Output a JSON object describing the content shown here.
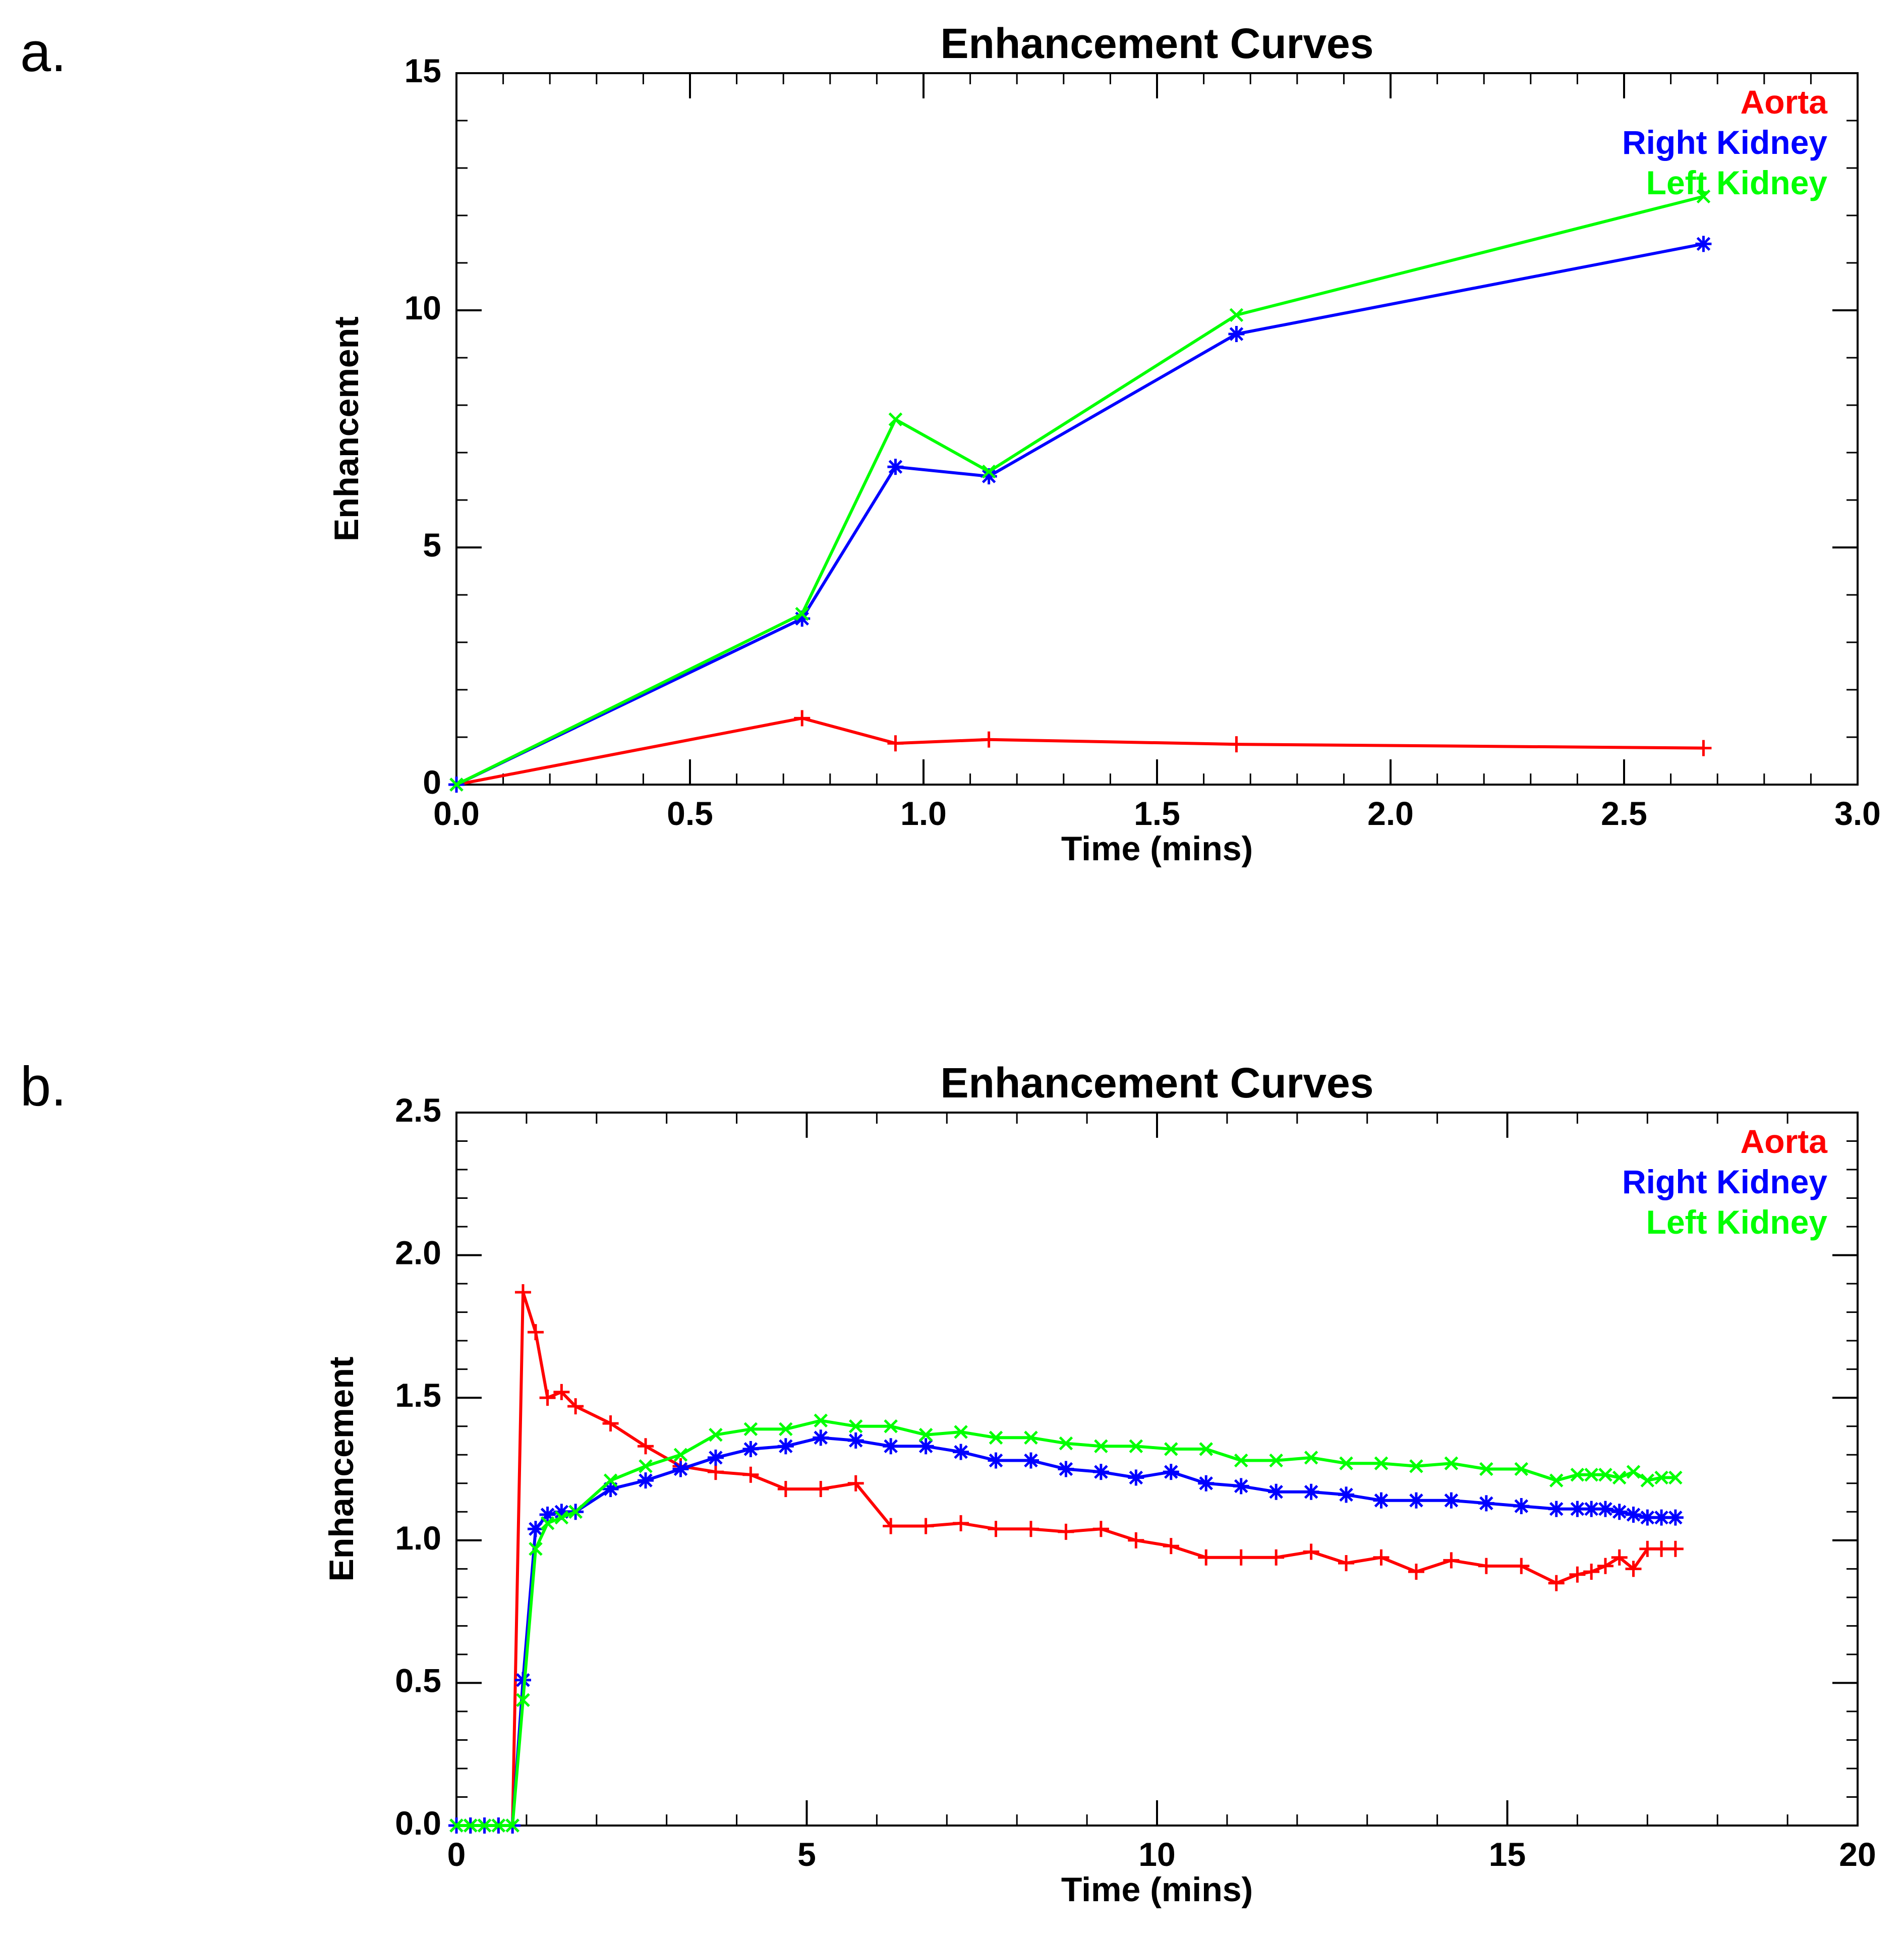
{
  "panel_labels": {
    "a": "a.",
    "b": "b."
  },
  "chart_data": [
    {
      "type": "line",
      "panel": "a.",
      "title": "Enhancement Curves",
      "xlabel": "Time (mins)",
      "ylabel": "Enhancement",
      "xlim": [
        0,
        3
      ],
      "ylim": [
        0,
        15
      ],
      "xticks": [
        0,
        0.5,
        1,
        1.5,
        2,
        2.5,
        3
      ],
      "xtick_labels": [
        "0.0",
        "0.5",
        "1.0",
        "1.5",
        "2.0",
        "2.5",
        "3.0"
      ],
      "yticks": [
        0,
        5,
        10,
        15
      ],
      "ytick_labels": [
        "0",
        "5",
        "10",
        "15"
      ],
      "x_minor_step": 0.1,
      "y_minor_step": 1,
      "legend_position": "top-right",
      "series": [
        {
          "name": "Aorta",
          "color": "#ff0000",
          "marker": "plus",
          "x": [
            0.0,
            0.74,
            0.94,
            1.14,
            1.67,
            2.67
          ],
          "y": [
            0.0,
            1.4,
            0.87,
            0.95,
            0.85,
            0.77
          ]
        },
        {
          "name": "Right Kidney",
          "color": "#0000ff",
          "marker": "asterisk",
          "x": [
            0.0,
            0.74,
            0.94,
            1.14,
            1.67,
            2.67
          ],
          "y": [
            0.0,
            3.5,
            6.7,
            6.5,
            9.5,
            11.4
          ]
        },
        {
          "name": "Left Kidney",
          "color": "#00ff00",
          "marker": "cross",
          "x": [
            0.0,
            0.74,
            0.94,
            1.14,
            1.67,
            2.67
          ],
          "y": [
            0.0,
            3.6,
            7.7,
            6.6,
            9.9,
            12.4
          ]
        }
      ]
    },
    {
      "type": "line",
      "panel": "b.",
      "title": "Enhancement Curves",
      "xlabel": "Time (mins)",
      "ylabel": "Enhancement",
      "xlim": [
        0,
        20
      ],
      "ylim": [
        0,
        2.5
      ],
      "xticks": [
        0,
        5,
        10,
        15,
        20
      ],
      "xtick_labels": [
        "0",
        "5",
        "10",
        "15",
        "20"
      ],
      "yticks": [
        0,
        0.5,
        1,
        1.5,
        2,
        2.5
      ],
      "ytick_labels": [
        "0.0",
        "0.5",
        "1.0",
        "1.5",
        "2.0",
        "2.5"
      ],
      "x_minor_step": 1,
      "y_minor_step": 0.1,
      "legend_position": "top-right",
      "series": [
        {
          "name": "Aorta",
          "color": "#ff0000",
          "marker": "plus",
          "x": [
            0.0,
            0.2,
            0.4,
            0.6,
            0.8,
            0.95,
            1.13,
            1.3,
            1.5,
            1.7,
            2.2,
            2.7,
            3.2,
            3.7,
            4.2,
            4.7,
            5.2,
            5.7,
            6.2,
            6.7,
            7.2,
            7.7,
            8.2,
            8.7,
            9.2,
            9.7,
            10.2,
            10.7,
            11.2,
            11.7,
            12.2,
            12.7,
            13.2,
            13.7,
            14.2,
            14.7,
            15.2,
            15.7,
            16.0,
            16.2,
            16.4,
            16.6,
            16.8,
            17.0,
            17.2,
            17.4
          ],
          "y": [
            0.0,
            0.0,
            0.0,
            0.0,
            0.0,
            1.87,
            1.73,
            1.5,
            1.52,
            1.47,
            1.41,
            1.33,
            1.26,
            1.24,
            1.23,
            1.18,
            1.18,
            1.2,
            1.05,
            1.05,
            1.06,
            1.04,
            1.04,
            1.03,
            1.04,
            1.0,
            0.98,
            0.94,
            0.94,
            0.94,
            0.96,
            0.92,
            0.94,
            0.89,
            0.93,
            0.91,
            0.91,
            0.85,
            0.88,
            0.89,
            0.91,
            0.94,
            0.9,
            0.97,
            0.97,
            0.97
          ]
        },
        {
          "name": "Right Kidney",
          "color": "#0000ff",
          "marker": "asterisk",
          "x": [
            0.0,
            0.2,
            0.4,
            0.6,
            0.8,
            0.95,
            1.13,
            1.3,
            1.5,
            1.7,
            2.2,
            2.7,
            3.2,
            3.7,
            4.2,
            4.7,
            5.2,
            5.7,
            6.2,
            6.7,
            7.2,
            7.7,
            8.2,
            8.7,
            9.2,
            9.7,
            10.2,
            10.7,
            11.2,
            11.7,
            12.2,
            12.7,
            13.2,
            13.7,
            14.2,
            14.7,
            15.2,
            15.7,
            16.0,
            16.2,
            16.4,
            16.6,
            16.8,
            17.0,
            17.2,
            17.4
          ],
          "y": [
            0.0,
            0.0,
            0.0,
            0.0,
            0.0,
            0.51,
            1.04,
            1.09,
            1.1,
            1.1,
            1.18,
            1.21,
            1.25,
            1.29,
            1.32,
            1.33,
            1.36,
            1.35,
            1.33,
            1.33,
            1.31,
            1.28,
            1.28,
            1.25,
            1.24,
            1.22,
            1.24,
            1.2,
            1.19,
            1.17,
            1.17,
            1.16,
            1.14,
            1.14,
            1.14,
            1.13,
            1.12,
            1.11,
            1.11,
            1.11,
            1.11,
            1.1,
            1.09,
            1.08,
            1.08,
            1.08
          ]
        },
        {
          "name": "Left Kidney",
          "color": "#00ff00",
          "marker": "cross",
          "x": [
            0.0,
            0.2,
            0.4,
            0.6,
            0.8,
            0.95,
            1.13,
            1.3,
            1.5,
            1.7,
            2.2,
            2.7,
            3.2,
            3.7,
            4.2,
            4.7,
            5.2,
            5.7,
            6.2,
            6.7,
            7.2,
            7.7,
            8.2,
            8.7,
            9.2,
            9.7,
            10.2,
            10.7,
            11.2,
            11.7,
            12.2,
            12.7,
            13.2,
            13.7,
            14.2,
            14.7,
            15.2,
            15.7,
            16.0,
            16.2,
            16.4,
            16.6,
            16.8,
            17.0,
            17.2,
            17.4
          ],
          "y": [
            0.0,
            0.0,
            0.0,
            0.0,
            0.0,
            0.44,
            0.97,
            1.06,
            1.08,
            1.1,
            1.21,
            1.26,
            1.3,
            1.37,
            1.39,
            1.39,
            1.42,
            1.4,
            1.4,
            1.37,
            1.38,
            1.36,
            1.36,
            1.34,
            1.33,
            1.33,
            1.32,
            1.32,
            1.28,
            1.28,
            1.29,
            1.27,
            1.27,
            1.26,
            1.27,
            1.25,
            1.25,
            1.21,
            1.23,
            1.23,
            1.23,
            1.22,
            1.24,
            1.21,
            1.22,
            1.22
          ]
        }
      ]
    }
  ]
}
